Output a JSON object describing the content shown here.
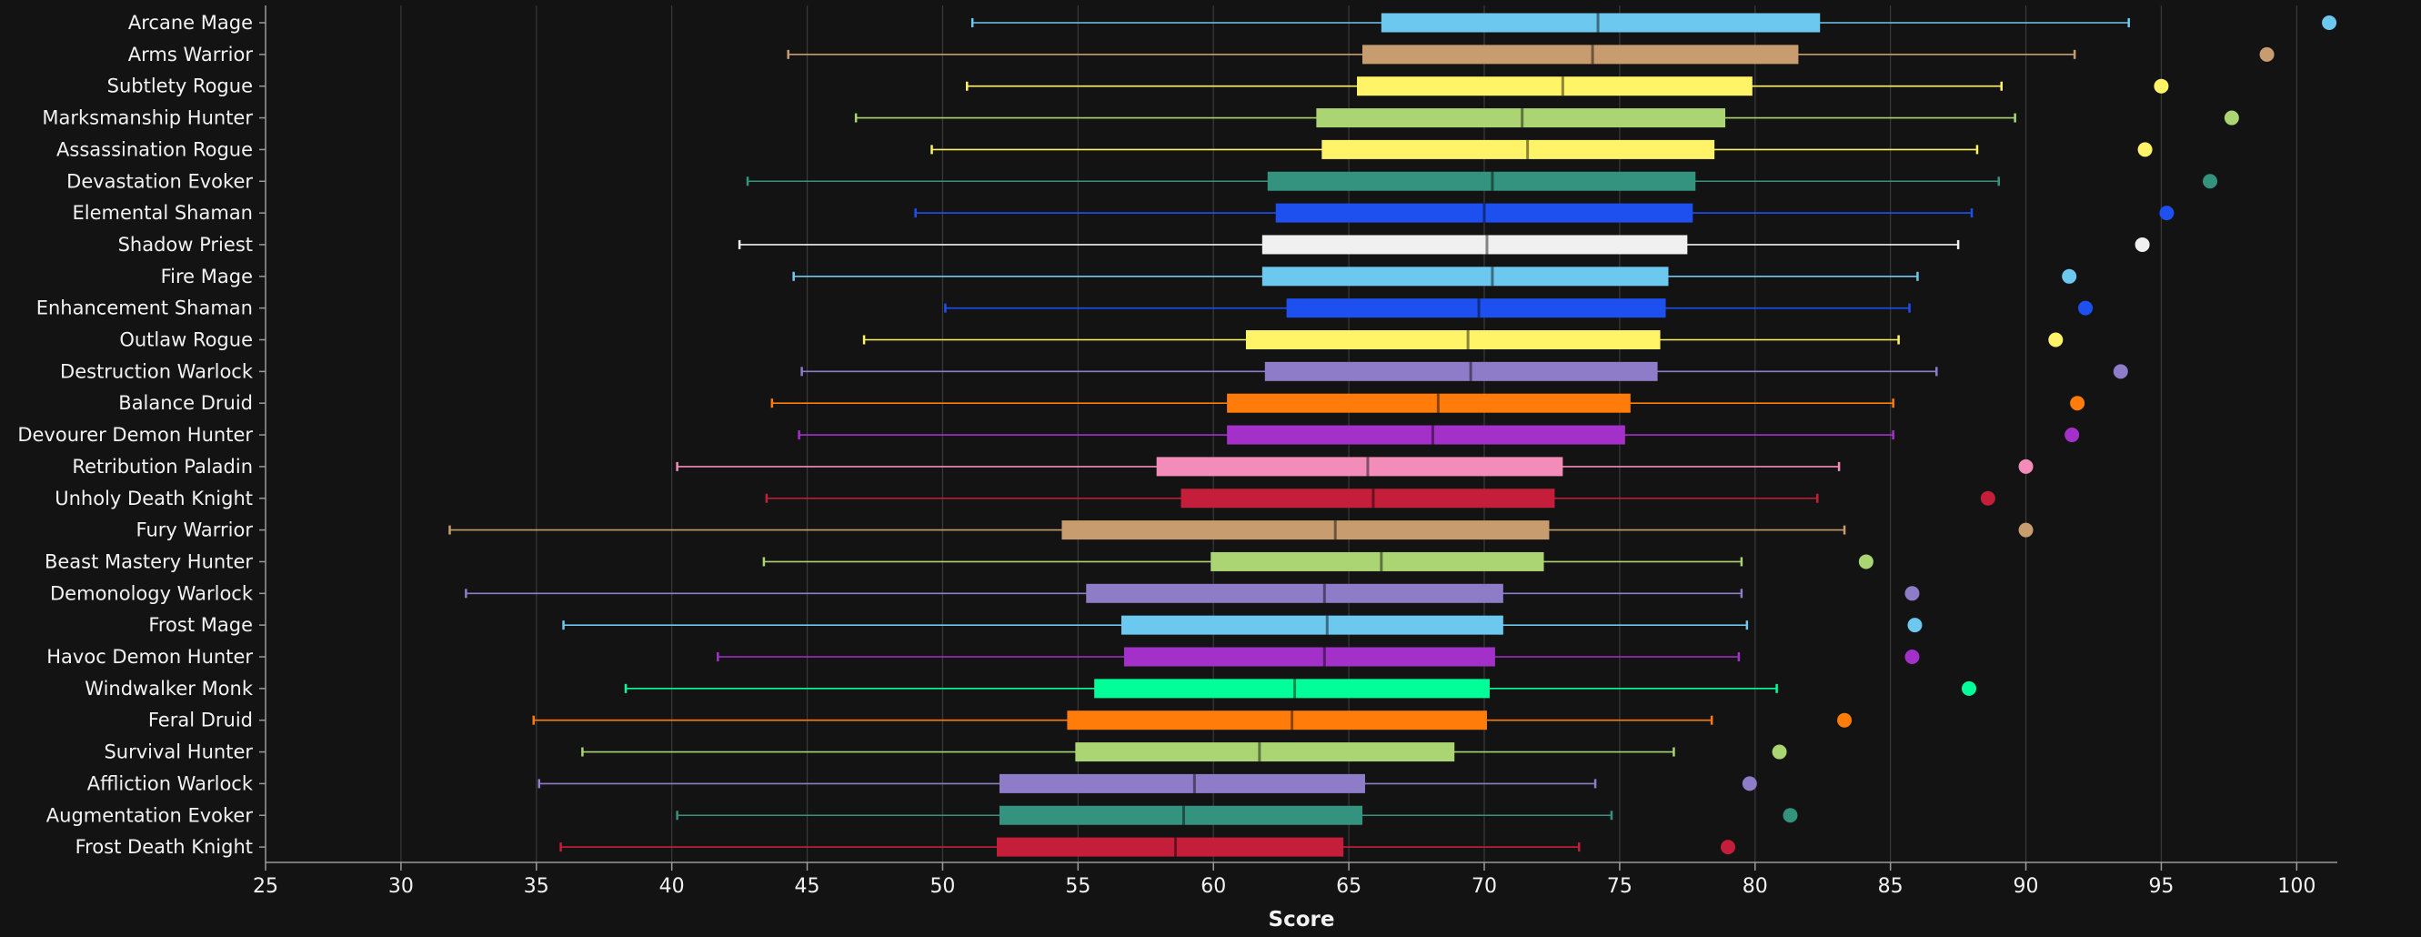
{
  "chart_data": {
    "type": "box",
    "xlabel": "Score",
    "xlim": [
      25,
      101.5
    ],
    "x_ticks": [
      25,
      30,
      35,
      40,
      45,
      50,
      55,
      60,
      65,
      70,
      75,
      80,
      85,
      90,
      95,
      100
    ],
    "grid": "vertical",
    "categories": [
      {
        "name": "Arcane Mage",
        "color": "#6cc8ef",
        "min": 51.1,
        "q1": 66.2,
        "median": 74.2,
        "q3": 82.4,
        "max": 93.8,
        "outlier": 101.2
      },
      {
        "name": "Arms Warrior",
        "color": "#c79c6e",
        "min": 44.3,
        "q1": 65.5,
        "median": 74.0,
        "q3": 81.6,
        "max": 91.8,
        "outlier": 98.9
      },
      {
        "name": "Subtlety Rogue",
        "color": "#fff468",
        "min": 50.9,
        "q1": 65.3,
        "median": 72.9,
        "q3": 79.9,
        "max": 89.1,
        "outlier": 95.0
      },
      {
        "name": "Marksmanship Hunter",
        "color": "#abd473",
        "min": 46.8,
        "q1": 63.8,
        "median": 71.4,
        "q3": 78.9,
        "max": 89.6,
        "outlier": 97.6
      },
      {
        "name": "Assassination Rogue",
        "color": "#fff468",
        "min": 49.6,
        "q1": 64.0,
        "median": 71.6,
        "q3": 78.5,
        "max": 88.2,
        "outlier": 94.4
      },
      {
        "name": "Devastation Evoker",
        "color": "#33937f",
        "min": 42.8,
        "q1": 62.0,
        "median": 70.3,
        "q3": 77.8,
        "max": 89.0,
        "outlier": 96.8
      },
      {
        "name": "Elemental Shaman",
        "color": "#1e50f0",
        "min": 49.0,
        "q1": 62.3,
        "median": 70.0,
        "q3": 77.7,
        "max": 88.0,
        "outlier": 95.2
      },
      {
        "name": "Shadow Priest",
        "color": "#f0f0f0",
        "min": 42.5,
        "q1": 61.8,
        "median": 70.1,
        "q3": 77.5,
        "max": 87.5,
        "outlier": 94.3
      },
      {
        "name": "Fire Mage",
        "color": "#6cc8ef",
        "min": 44.5,
        "q1": 61.8,
        "median": 70.3,
        "q3": 76.8,
        "max": 86.0,
        "outlier": 91.6
      },
      {
        "name": "Enhancement Shaman",
        "color": "#1e50f0",
        "min": 50.1,
        "q1": 62.7,
        "median": 69.8,
        "q3": 76.7,
        "max": 85.7,
        "outlier": 92.2
      },
      {
        "name": "Outlaw Rogue",
        "color": "#fff468",
        "min": 47.1,
        "q1": 61.2,
        "median": 69.4,
        "q3": 76.5,
        "max": 85.3,
        "outlier": 91.1
      },
      {
        "name": "Destruction Warlock",
        "color": "#8e7cc8",
        "min": 44.8,
        "q1": 61.9,
        "median": 69.5,
        "q3": 76.4,
        "max": 86.7,
        "outlier": 93.5
      },
      {
        "name": "Balance Druid",
        "color": "#ff7c0a",
        "min": 43.7,
        "q1": 60.5,
        "median": 68.3,
        "q3": 75.4,
        "max": 85.1,
        "outlier": 91.9
      },
      {
        "name": "Devourer Demon Hunter",
        "color": "#a330c9",
        "min": 44.7,
        "q1": 60.5,
        "median": 68.1,
        "q3": 75.2,
        "max": 85.1,
        "outlier": 91.7
      },
      {
        "name": "Retribution Paladin",
        "color": "#f48cba",
        "min": 40.2,
        "q1": 57.9,
        "median": 65.7,
        "q3": 72.9,
        "max": 83.1,
        "outlier": 90.0
      },
      {
        "name": "Unholy Death Knight",
        "color": "#c41e3b",
        "min": 43.5,
        "q1": 58.8,
        "median": 65.9,
        "q3": 72.6,
        "max": 82.3,
        "outlier": 88.6
      },
      {
        "name": "Fury Warrior",
        "color": "#c79c6e",
        "min": 31.8,
        "q1": 54.4,
        "median": 64.5,
        "q3": 72.4,
        "max": 83.3,
        "outlier": 90.0
      },
      {
        "name": "Beast Mastery Hunter",
        "color": "#abd473",
        "min": 43.4,
        "q1": 59.9,
        "median": 66.2,
        "q3": 72.2,
        "max": 79.5,
        "outlier": 84.1
      },
      {
        "name": "Demonology Warlock",
        "color": "#8e7cc8",
        "min": 32.4,
        "q1": 55.3,
        "median": 64.1,
        "q3": 70.7,
        "max": 79.5,
        "outlier": 85.8
      },
      {
        "name": "Frost Mage",
        "color": "#6cc8ef",
        "min": 36.0,
        "q1": 56.6,
        "median": 64.2,
        "q3": 70.7,
        "max": 79.7,
        "outlier": 85.9
      },
      {
        "name": "Havoc Demon Hunter",
        "color": "#a330c9",
        "min": 41.7,
        "q1": 56.7,
        "median": 64.1,
        "q3": 70.4,
        "max": 79.4,
        "outlier": 85.8
      },
      {
        "name": "Windwalker Monk",
        "color": "#00ff98",
        "min": 38.3,
        "q1": 55.6,
        "median": 63.0,
        "q3": 70.2,
        "max": 80.8,
        "outlier": 87.9
      },
      {
        "name": "Feral Druid",
        "color": "#ff7c0a",
        "min": 34.9,
        "q1": 54.6,
        "median": 62.9,
        "q3": 70.1,
        "max": 78.4,
        "outlier": 83.3
      },
      {
        "name": "Survival Hunter",
        "color": "#abd473",
        "min": 36.7,
        "q1": 54.9,
        "median": 61.7,
        "q3": 68.9,
        "max": 77.0,
        "outlier": 80.9
      },
      {
        "name": "Affliction Warlock",
        "color": "#8e7cc8",
        "min": 35.1,
        "q1": 52.1,
        "median": 59.3,
        "q3": 65.6,
        "max": 74.1,
        "outlier": 79.8
      },
      {
        "name": "Augmentation Evoker",
        "color": "#33937f",
        "min": 40.2,
        "q1": 52.1,
        "median": 58.9,
        "q3": 65.5,
        "max": 74.7,
        "outlier": 81.3
      },
      {
        "name": "Frost Death Knight",
        "color": "#c41e3b",
        "min": 35.9,
        "q1": 52.0,
        "median": 58.6,
        "q3": 64.8,
        "max": 73.5,
        "outlier": 79.0
      }
    ]
  }
}
